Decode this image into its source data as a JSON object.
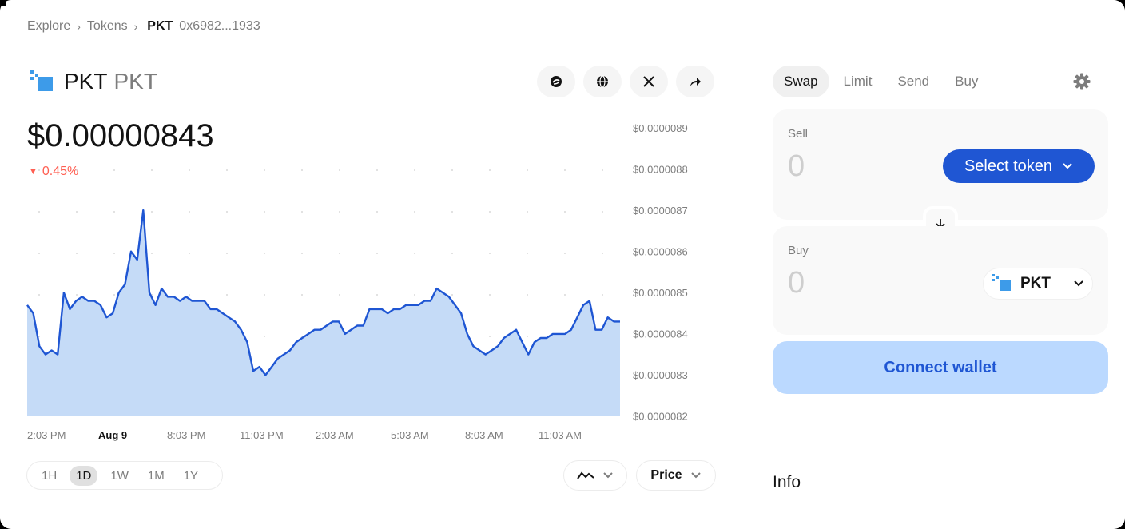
{
  "breadcrumb": {
    "items": [
      "Explore",
      "Tokens"
    ],
    "current": "PKT",
    "address": "0x6982...1933"
  },
  "token": {
    "name": "PKT",
    "symbol": "PKT",
    "price": "$0.00000843",
    "change": "0.45%",
    "change_direction": "down",
    "change_color": "#ff5f52",
    "logo_color": "#3d9be9"
  },
  "actions": [
    {
      "icon": "etherscan-icon"
    },
    {
      "icon": "globe-icon"
    },
    {
      "icon": "x-twitter-icon"
    },
    {
      "icon": "share-icon"
    }
  ],
  "chart_data": {
    "type": "area",
    "line_color": "#1f56d3",
    "fill_color": "#c5dbf7",
    "y_tick_labels": [
      "$0.0000089",
      "$0.0000088",
      "$0.0000087",
      "$0.0000086",
      "$0.0000085",
      "$0.0000084",
      "$0.0000083",
      "$0.0000082"
    ],
    "ylim": [
      8.2e-06,
      8.9e-06
    ],
    "x_tick_labels": [
      "2:03 PM",
      "Aug 9",
      "8:03 PM",
      "11:03 PM",
      "2:03 AM",
      "5:03 AM",
      "8:03 AM",
      "11:03 AM"
    ],
    "x_bold_label": "Aug 9",
    "grid": "dotted",
    "values": [
      8.47,
      8.45,
      8.37,
      8.35,
      8.36,
      8.35,
      8.5,
      8.46,
      8.48,
      8.49,
      8.48,
      8.48,
      8.47,
      8.44,
      8.45,
      8.5,
      8.52,
      8.6,
      8.58,
      8.7,
      8.5,
      8.47,
      8.51,
      8.49,
      8.49,
      8.48,
      8.49,
      8.48,
      8.48,
      8.48,
      8.46,
      8.46,
      8.45,
      8.44,
      8.43,
      8.41,
      8.38,
      8.31,
      8.32,
      8.3,
      8.32,
      8.34,
      8.35,
      8.36,
      8.38,
      8.39,
      8.4,
      8.41,
      8.41,
      8.42,
      8.43,
      8.43,
      8.4,
      8.41,
      8.42,
      8.42,
      8.46,
      8.46,
      8.46,
      8.45,
      8.46,
      8.46,
      8.47,
      8.47,
      8.47,
      8.48,
      8.48,
      8.51,
      8.5,
      8.49,
      8.47,
      8.45,
      8.4,
      8.37,
      8.36,
      8.35,
      8.36,
      8.37,
      8.39,
      8.4,
      8.41,
      8.38,
      8.35,
      8.38,
      8.39,
      8.39,
      8.4,
      8.4,
      8.4,
      8.41,
      8.44,
      8.47,
      8.48,
      8.41,
      8.41,
      8.44,
      8.43,
      8.43
    ]
  },
  "time_ranges": [
    "1H",
    "1D",
    "1W",
    "1M",
    "1Y"
  ],
  "active_range": "1D",
  "chart_controls": {
    "chart_type_icon": "line-chart-icon",
    "metric_label": "Price"
  },
  "swap": {
    "tabs": [
      "Swap",
      "Limit",
      "Send",
      "Buy"
    ],
    "active_tab": "Swap",
    "sell": {
      "label": "Sell",
      "amount": "0",
      "select_label": "Select token"
    },
    "buy": {
      "label": "Buy",
      "amount": "0",
      "token": "PKT"
    },
    "connect_label": "Connect wallet",
    "accent_color": "#1f56d3"
  },
  "info": {
    "heading": "Info"
  }
}
